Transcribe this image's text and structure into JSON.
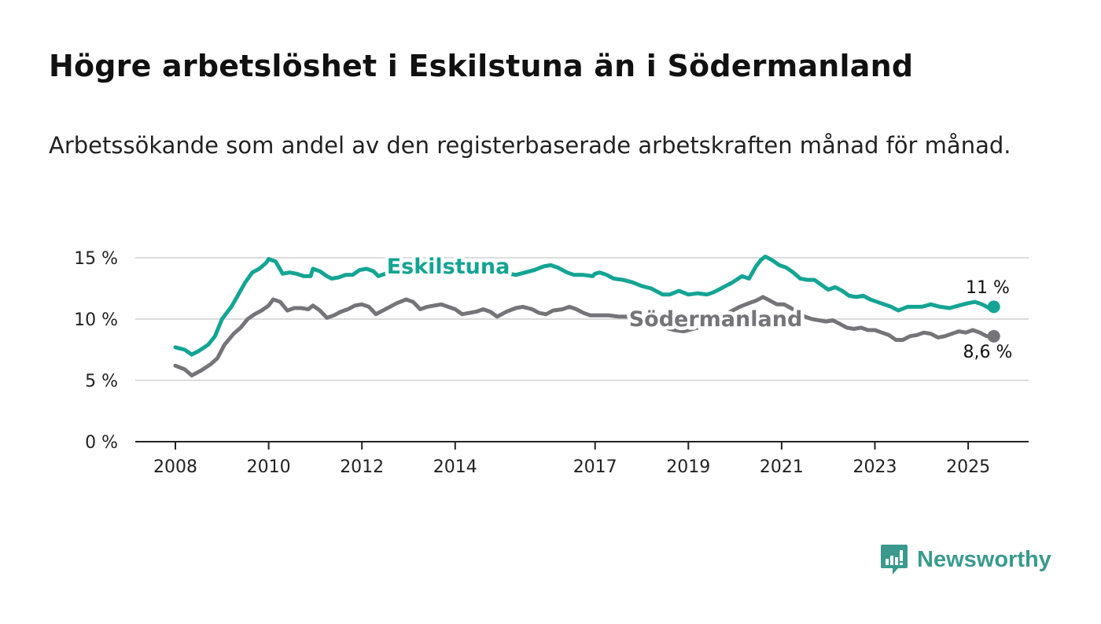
{
  "header": {
    "title": "Högre arbetslöshet i Eskilstuna än i Södermanland",
    "subtitle": "Arbetssökande som andel av den registerbaserade arbetskraften månad för månad."
  },
  "brand": {
    "name": "Newsworthy",
    "icon": "newsworthy-logo-icon",
    "color": "#3a9a8e"
  },
  "chart_data": {
    "type": "line",
    "y_ticks": [
      {
        "value": 0,
        "label": "0 %"
      },
      {
        "value": 5,
        "label": "5 %"
      },
      {
        "value": 10,
        "label": "10 %"
      },
      {
        "value": 15,
        "label": "15 %"
      }
    ],
    "x_ticks": [
      {
        "value": 2008,
        "label": "2008"
      },
      {
        "value": 2010,
        "label": "2010"
      },
      {
        "value": 2012,
        "label": "2012"
      },
      {
        "value": 2014,
        "label": "2014"
      },
      {
        "value": 2017,
        "label": "2017"
      },
      {
        "value": 2019,
        "label": "2019"
      },
      {
        "value": 2021,
        "label": "2021"
      },
      {
        "value": 2023,
        "label": "2023"
      },
      {
        "value": 2025,
        "label": "2025"
      }
    ],
    "ylim": [
      0,
      15
    ],
    "grid": true,
    "series": [
      {
        "name": "Eskilstuna",
        "color": "#13a494",
        "end_label": "11 %",
        "points": [
          [
            2008.0,
            7.7
          ],
          [
            2008.2,
            7.5
          ],
          [
            2008.35,
            7.1
          ],
          [
            2008.5,
            7.4
          ],
          [
            2008.7,
            7.9
          ],
          [
            2008.85,
            8.6
          ],
          [
            2009.0,
            10.0
          ],
          [
            2009.2,
            11.0
          ],
          [
            2009.35,
            12.0
          ],
          [
            2009.5,
            13.0
          ],
          [
            2009.65,
            13.8
          ],
          [
            2009.8,
            14.1
          ],
          [
            2009.95,
            14.6
          ],
          [
            2010.0,
            14.9
          ],
          [
            2010.15,
            14.7
          ],
          [
            2010.3,
            13.7
          ],
          [
            2010.45,
            13.8
          ],
          [
            2010.6,
            13.7
          ],
          [
            2010.75,
            13.5
          ],
          [
            2010.9,
            13.5
          ],
          [
            2010.95,
            14.1
          ],
          [
            2011.1,
            13.9
          ],
          [
            2011.25,
            13.5
          ],
          [
            2011.35,
            13.3
          ],
          [
            2011.5,
            13.4
          ],
          [
            2011.65,
            13.6
          ],
          [
            2011.8,
            13.6
          ],
          [
            2011.95,
            14.0
          ],
          [
            2012.1,
            14.1
          ],
          [
            2012.25,
            13.9
          ],
          [
            2012.35,
            13.5
          ],
          [
            2012.5,
            13.7
          ],
          [
            2012.6,
            13.9
          ],
          [
            2012.75,
            14.0
          ],
          [
            2013.0,
            14.0
          ],
          [
            2013.5,
            14.1
          ],
          [
            2014.0,
            14.1
          ],
          [
            2014.5,
            14.0
          ],
          [
            2015.0,
            13.8
          ],
          [
            2015.3,
            13.6
          ],
          [
            2015.5,
            13.8
          ],
          [
            2015.7,
            14.0
          ],
          [
            2015.9,
            14.3
          ],
          [
            2016.05,
            14.4
          ],
          [
            2016.2,
            14.2
          ],
          [
            2016.4,
            13.8
          ],
          [
            2016.55,
            13.6
          ],
          [
            2016.75,
            13.6
          ],
          [
            2016.95,
            13.5
          ],
          [
            2017.0,
            13.7
          ],
          [
            2017.1,
            13.8
          ],
          [
            2017.25,
            13.6
          ],
          [
            2017.4,
            13.3
          ],
          [
            2017.6,
            13.2
          ],
          [
            2017.8,
            13.0
          ],
          [
            2018.0,
            12.7
          ],
          [
            2018.2,
            12.5
          ],
          [
            2018.45,
            12.0
          ],
          [
            2018.6,
            12.0
          ],
          [
            2018.8,
            12.3
          ],
          [
            2019.0,
            12.0
          ],
          [
            2019.2,
            12.1
          ],
          [
            2019.4,
            12.0
          ],
          [
            2019.55,
            12.2
          ],
          [
            2019.75,
            12.6
          ],
          [
            2019.95,
            13.0
          ],
          [
            2020.15,
            13.5
          ],
          [
            2020.3,
            13.3
          ],
          [
            2020.45,
            14.3
          ],
          [
            2020.55,
            14.8
          ],
          [
            2020.65,
            15.1
          ],
          [
            2020.8,
            14.8
          ],
          [
            2020.95,
            14.4
          ],
          [
            2021.1,
            14.2
          ],
          [
            2021.25,
            13.8
          ],
          [
            2021.4,
            13.3
          ],
          [
            2021.55,
            13.2
          ],
          [
            2021.7,
            13.2
          ],
          [
            2021.85,
            12.8
          ],
          [
            2022.0,
            12.4
          ],
          [
            2022.15,
            12.6
          ],
          [
            2022.3,
            12.3
          ],
          [
            2022.45,
            11.9
          ],
          [
            2022.6,
            11.8
          ],
          [
            2022.75,
            11.9
          ],
          [
            2022.9,
            11.6
          ],
          [
            2023.05,
            11.4
          ],
          [
            2023.2,
            11.2
          ],
          [
            2023.35,
            11.0
          ],
          [
            2023.5,
            10.7
          ],
          [
            2023.7,
            11.0
          ],
          [
            2023.85,
            11.0
          ],
          [
            2024.0,
            11.0
          ],
          [
            2024.2,
            11.2
          ],
          [
            2024.4,
            11.0
          ],
          [
            2024.6,
            10.9
          ],
          [
            2024.8,
            11.1
          ],
          [
            2025.0,
            11.3
          ],
          [
            2025.15,
            11.4
          ],
          [
            2025.3,
            11.2
          ],
          [
            2025.45,
            10.9
          ],
          [
            2025.55,
            11.0
          ]
        ]
      },
      {
        "name": "Södermanland",
        "color": "#747479",
        "end_label": "8,6 %",
        "points": [
          [
            2008.0,
            6.2
          ],
          [
            2008.2,
            5.9
          ],
          [
            2008.35,
            5.4
          ],
          [
            2008.55,
            5.8
          ],
          [
            2008.75,
            6.3
          ],
          [
            2008.9,
            6.8
          ],
          [
            2009.05,
            7.9
          ],
          [
            2009.25,
            8.8
          ],
          [
            2009.4,
            9.3
          ],
          [
            2009.55,
            10.0
          ],
          [
            2009.7,
            10.4
          ],
          [
            2009.85,
            10.7
          ],
          [
            2010.0,
            11.1
          ],
          [
            2010.1,
            11.6
          ],
          [
            2010.25,
            11.4
          ],
          [
            2010.4,
            10.7
          ],
          [
            2010.55,
            10.9
          ],
          [
            2010.7,
            10.9
          ],
          [
            2010.85,
            10.8
          ],
          [
            2010.95,
            11.1
          ],
          [
            2011.1,
            10.7
          ],
          [
            2011.25,
            10.1
          ],
          [
            2011.4,
            10.3
          ],
          [
            2011.55,
            10.6
          ],
          [
            2011.7,
            10.8
          ],
          [
            2011.85,
            11.1
          ],
          [
            2012.0,
            11.2
          ],
          [
            2012.15,
            11.0
          ],
          [
            2012.3,
            10.4
          ],
          [
            2012.45,
            10.7
          ],
          [
            2012.6,
            11.0
          ],
          [
            2012.75,
            11.3
          ],
          [
            2012.95,
            11.6
          ],
          [
            2013.1,
            11.4
          ],
          [
            2013.25,
            10.8
          ],
          [
            2013.4,
            11.0
          ],
          [
            2013.55,
            11.1
          ],
          [
            2013.7,
            11.2
          ],
          [
            2013.85,
            11.0
          ],
          [
            2014.0,
            10.8
          ],
          [
            2014.15,
            10.4
          ],
          [
            2014.3,
            10.5
          ],
          [
            2014.45,
            10.6
          ],
          [
            2014.6,
            10.8
          ],
          [
            2014.75,
            10.6
          ],
          [
            2014.9,
            10.2
          ],
          [
            2015.1,
            10.6
          ],
          [
            2015.3,
            10.9
          ],
          [
            2015.45,
            11.0
          ],
          [
            2015.65,
            10.8
          ],
          [
            2015.8,
            10.5
          ],
          [
            2015.95,
            10.4
          ],
          [
            2016.1,
            10.7
          ],
          [
            2016.3,
            10.8
          ],
          [
            2016.45,
            11.0
          ],
          [
            2016.6,
            10.8
          ],
          [
            2016.75,
            10.5
          ],
          [
            2016.9,
            10.3
          ],
          [
            2017.1,
            10.3
          ],
          [
            2017.3,
            10.3
          ],
          [
            2017.5,
            10.2
          ],
          [
            2017.7,
            10.2
          ],
          [
            2017.9,
            10.0
          ],
          [
            2018.1,
            9.8
          ],
          [
            2018.3,
            9.6
          ],
          [
            2018.5,
            9.3
          ],
          [
            2018.7,
            9.1
          ],
          [
            2018.9,
            9.0
          ],
          [
            2019.1,
            9.2
          ],
          [
            2019.3,
            9.4
          ],
          [
            2019.5,
            9.7
          ],
          [
            2019.7,
            10.1
          ],
          [
            2019.9,
            10.6
          ],
          [
            2020.1,
            11.0
          ],
          [
            2020.3,
            11.3
          ],
          [
            2020.45,
            11.5
          ],
          [
            2020.6,
            11.8
          ],
          [
            2020.75,
            11.5
          ],
          [
            2020.9,
            11.2
          ],
          [
            2021.05,
            11.2
          ],
          [
            2021.2,
            10.9
          ],
          [
            2021.35,
            10.5
          ],
          [
            2021.5,
            10.2
          ],
          [
            2021.65,
            10.0
          ],
          [
            2021.8,
            9.9
          ],
          [
            2021.95,
            9.8
          ],
          [
            2022.1,
            9.9
          ],
          [
            2022.25,
            9.6
          ],
          [
            2022.4,
            9.3
          ],
          [
            2022.55,
            9.2
          ],
          [
            2022.7,
            9.3
          ],
          [
            2022.85,
            9.1
          ],
          [
            2023.0,
            9.1
          ],
          [
            2023.15,
            8.9
          ],
          [
            2023.3,
            8.7
          ],
          [
            2023.45,
            8.3
          ],
          [
            2023.6,
            8.3
          ],
          [
            2023.75,
            8.6
          ],
          [
            2023.9,
            8.7
          ],
          [
            2024.05,
            8.9
          ],
          [
            2024.2,
            8.8
          ],
          [
            2024.35,
            8.5
          ],
          [
            2024.5,
            8.6
          ],
          [
            2024.65,
            8.8
          ],
          [
            2024.8,
            9.0
          ],
          [
            2024.95,
            8.9
          ],
          [
            2025.1,
            9.1
          ],
          [
            2025.25,
            8.9
          ],
          [
            2025.4,
            8.6
          ],
          [
            2025.55,
            8.6
          ]
        ]
      }
    ]
  }
}
